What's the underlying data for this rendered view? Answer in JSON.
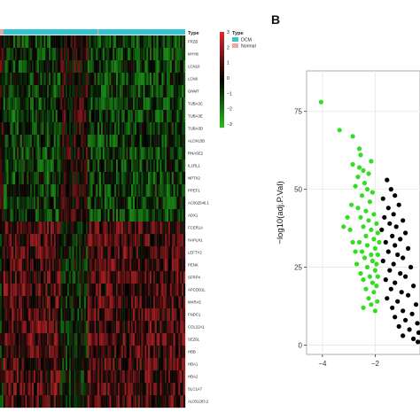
{
  "colors": {
    "dcm": "#35c6d4",
    "normal": "#f2a39b",
    "high": "#e3262a",
    "mid": "#000000",
    "low": "#21c21a",
    "up_point": "#000000",
    "down_point": "#33dd22"
  },
  "chart_data": [
    {
      "type": "heatmap",
      "annotation": {
        "label": "Type",
        "groups": [
          {
            "name": "DCM",
            "color": "#35c6d4"
          },
          {
            "name": "Normal",
            "color": "#f2a39b"
          }
        ]
      },
      "color_scale": {
        "ticks": [
          "3",
          "2",
          "1",
          "0",
          "−1",
          "−2",
          "−3"
        ],
        "range": [
          -3,
          3
        ]
      },
      "genes": [
        "FRZB",
        "MYH6",
        "LCN10",
        "LCN6",
        "GNMT",
        "TUBA3C",
        "TUBA3E",
        "TUBA3D",
        "ALOX15B",
        "RNASE2",
        "IL1RL1",
        "NPTX2",
        "PPEF1",
        "AC002546.1",
        "ADX1",
        "FCER1A",
        "HAPLN1",
        "LEFTY2",
        "PENK",
        "SFRP4",
        "APCDD1L",
        "MXRA5",
        "FNDC1",
        "COL22A1",
        "SEZ6L",
        "HBB",
        "HBA1",
        "HBA2",
        "SLC1A7",
        "AL031283.2"
      ]
    },
    {
      "type": "scatter",
      "panel_label": "B",
      "xlabel": "",
      "ylabel": "−log10(adj.P.Val)",
      "x_ticks": [
        "−4",
        "−2"
      ],
      "y_ticks": [
        "0",
        "25",
        "50",
        "75"
      ],
      "xlim": [
        -4.6,
        -0.3
      ],
      "ylim": [
        -3,
        88
      ],
      "grid": true,
      "series": [
        {
          "points": [
            [
              -4.05,
              78
            ],
            [
              -3.35,
              69
            ],
            [
              -2.85,
              67
            ],
            [
              -2.6,
              63
            ],
            [
              -2.55,
              61
            ],
            [
              -2.85,
              58
            ],
            [
              -2.6,
              57
            ],
            [
              -2.45,
              56
            ],
            [
              -2.15,
              59
            ],
            [
              -2.25,
              55
            ],
            [
              -2.65,
              54
            ],
            [
              -2.4,
              52
            ],
            [
              -2.75,
              51
            ],
            [
              -2.3,
              50
            ],
            [
              -2.1,
              49
            ],
            [
              -2.5,
              48
            ],
            [
              -2.2,
              46
            ],
            [
              -2.65,
              44
            ],
            [
              -2.35,
              43
            ],
            [
              -2.05,
              42
            ],
            [
              -2.55,
              41
            ],
            [
              -2.25,
              40
            ],
            [
              -1.95,
              39
            ],
            [
              -2.45,
              38
            ],
            [
              -2.15,
              37
            ],
            [
              -1.9,
              36
            ],
            [
              -2.35,
              35
            ],
            [
              -2.05,
              34
            ],
            [
              -2.6,
              33
            ],
            [
              -1.85,
              33
            ],
            [
              -2.3,
              32
            ],
            [
              -2.0,
              31
            ],
            [
              -2.5,
              30
            ],
            [
              -2.15,
              29
            ],
            [
              -1.9,
              29
            ],
            [
              -2.4,
              28
            ],
            [
              -2.1,
              27
            ],
            [
              -2.7,
              26
            ],
            [
              -1.95,
              26
            ],
            [
              -2.3,
              25
            ],
            [
              -2.0,
              24
            ],
            [
              -2.55,
              23
            ],
            [
              -2.2,
              22
            ],
            [
              -1.9,
              22
            ],
            [
              -2.45,
              21
            ],
            [
              -2.1,
              20
            ],
            [
              -1.95,
              19
            ],
            [
              -2.35,
              18
            ],
            [
              -2.05,
              17
            ],
            [
              -2.25,
              15
            ],
            [
              -1.92,
              14
            ],
            [
              -2.15,
              13
            ],
            [
              -2.45,
              12
            ],
            [
              -2.0,
              11
            ],
            [
              -2.95,
              37
            ],
            [
              -2.85,
              33
            ],
            [
              -2.75,
              30
            ],
            [
              -3.05,
              41
            ],
            [
              -2.9,
              45
            ],
            [
              -3.2,
              38
            ]
          ]
        },
        {
          "points": [
            [
              -1.55,
              53
            ],
            [
              -1.4,
              50
            ],
            [
              -1.25,
              48
            ],
            [
              -1.7,
              47
            ],
            [
              -1.1,
              45
            ],
            [
              -1.5,
              44
            ],
            [
              -1.3,
              42
            ],
            [
              -1.65,
              41
            ],
            [
              -0.95,
              40
            ],
            [
              -1.45,
              39
            ],
            [
              -1.2,
              38
            ],
            [
              -1.75,
              37
            ],
            [
              -0.85,
              36
            ],
            [
              -1.35,
              35
            ],
            [
              -1.05,
              34
            ],
            [
              -1.6,
              33
            ],
            [
              -1.25,
              32
            ],
            [
              -0.75,
              31
            ],
            [
              -1.5,
              30
            ],
            [
              -1.15,
              29
            ],
            [
              -0.95,
              28
            ],
            [
              -1.7,
              27
            ],
            [
              -1.3,
              26
            ],
            [
              -0.65,
              25
            ],
            [
              -1.45,
              24
            ],
            [
              -1.05,
              23
            ],
            [
              -0.85,
              22
            ],
            [
              -1.6,
              21
            ],
            [
              -1.25,
              20
            ],
            [
              -0.55,
              19
            ],
            [
              -1.4,
              18
            ],
            [
              -1.0,
              17
            ],
            [
              -0.75,
              16
            ],
            [
              -1.55,
              15
            ],
            [
              -1.15,
              14
            ],
            [
              -0.45,
              13
            ],
            [
              -1.35,
              12
            ],
            [
              -0.95,
              11
            ],
            [
              -0.6,
              10
            ],
            [
              -1.25,
              9
            ],
            [
              -0.85,
              8
            ],
            [
              -0.4,
              7
            ],
            [
              -1.1,
              6
            ],
            [
              -0.7,
              5
            ],
            [
              -0.35,
              4
            ],
            [
              -0.95,
              3
            ],
            [
              -0.55,
              2
            ],
            [
              -0.38,
              1
            ]
          ]
        }
      ]
    }
  ]
}
